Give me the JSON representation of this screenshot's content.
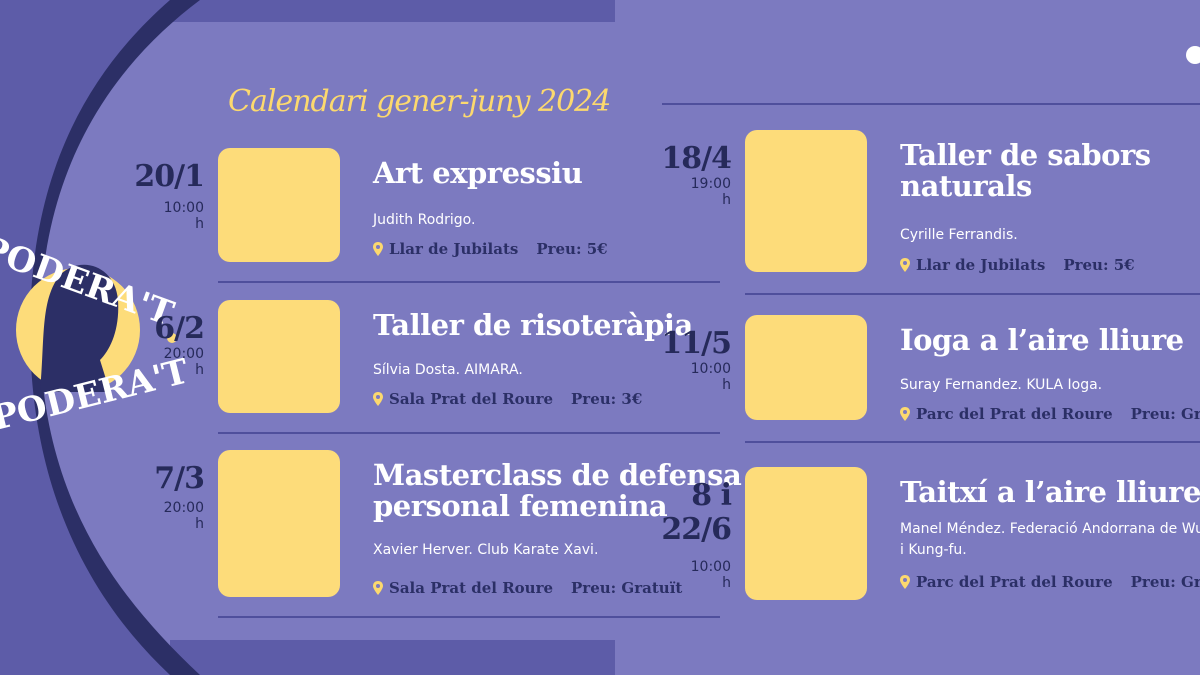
{
  "header": {
    "title": "Calendari gener-juny 2024"
  },
  "logo": {
    "top": "PODERA'T",
    "bottom": "PODERA'T"
  },
  "events": [
    {
      "date": "20/1",
      "time": "10:00 h",
      "title": "Art expressiu",
      "organizer": "Judith Rodrigo.",
      "place": "Llar de Jubilats",
      "price": "Preu: 5€"
    },
    {
      "date": "6/2",
      "time": "20:00 h",
      "title": "Taller de risoteràpia",
      "organizer": "Sílvia Dosta. AIMARA.",
      "place": "Sala Prat del Roure",
      "price": "Preu: 3€"
    },
    {
      "date": "7/3",
      "time": "20:00 h",
      "title": "Masterclass de defensa personal femenina",
      "organizer": "Xavier Herver. Club Karate Xavi.",
      "place": "Sala Prat del Roure",
      "price": "Preu: Gratuït"
    },
    {
      "date": "18/4",
      "time": "19:00 h",
      "title": "Taller de sabors naturals",
      "organizer": "Cyrille Ferrandis.",
      "place": "Llar de Jubilats",
      "price": "Preu: 5€"
    },
    {
      "date": "11/5",
      "time": "10:00 h",
      "title": "Ioga a l’aire lliure",
      "organizer": "Suray Fernandez. KULA Ioga.",
      "place": "Parc del Prat del Roure",
      "price": "Preu: Gratuït"
    },
    {
      "date": "8 i 22/6",
      "time": "10:00 h",
      "title": "Taitxí a l’aire lliure",
      "organizer": "Manel Méndez. Federació Andorrana de Wushu i Kung-fu.",
      "place": "Parc del Prat del Roure",
      "price": "Preu: Gratuït"
    }
  ]
}
